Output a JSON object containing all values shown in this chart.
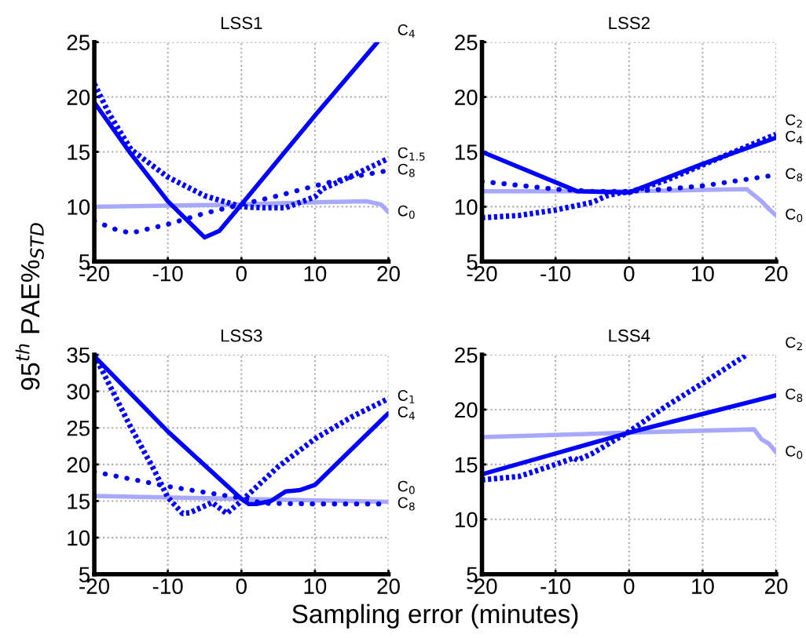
{
  "chart_data": [
    {
      "type": "line",
      "title": "LSS1",
      "ylabel": "95$^{th}$ PAE%$_{STD}$",
      "xlim": [
        -20,
        20
      ],
      "xticks": [
        -20,
        -10,
        0,
        10,
        20
      ],
      "ylim": [
        5,
        25
      ],
      "yticks": [
        5,
        10,
        15,
        20,
        25
      ],
      "grid": true,
      "legend": false,
      "series": [
        {
          "name": "C$_{0}$",
          "color": "#a8a8ff",
          "line_style": "solid",
          "x": [
            -20,
            -10,
            0,
            10,
            17,
            19,
            20
          ],
          "values": [
            10.0,
            10.1,
            10.2,
            10.4,
            10.5,
            10.2,
            9.5
          ]
        },
        {
          "name": "C$_{8}$",
          "color": "#0000ff",
          "line_style": "dotted",
          "x": [
            -20,
            -17,
            -15,
            -10,
            -5,
            0,
            5,
            10,
            15,
            20
          ],
          "values": [
            8.7,
            7.9,
            7.6,
            8.4,
            9.4,
            10.2,
            11.0,
            11.9,
            12.7,
            13.3
          ]
        },
        {
          "name": "C$_{1.5}$",
          "color": "#0000ff",
          "line_style": "dashed",
          "x": [
            -20,
            -18,
            -15,
            -10,
            -5,
            -1,
            0,
            3,
            6,
            8,
            10,
            11,
            15,
            20
          ],
          "values": [
            21.2,
            18.5,
            15.2,
            12.7,
            11.0,
            10.2,
            10.0,
            9.9,
            9.9,
            10.4,
            10.9,
            11.6,
            12.8,
            14.4
          ]
        },
        {
          "name": "C$_{4}$",
          "color": "#0000ff",
          "line_style": "solid",
          "x": [
            -20,
            -15,
            -10,
            -5,
            -3,
            0,
            10,
            18.5
          ],
          "values": [
            19.5,
            14.8,
            10.5,
            7.2,
            7.8,
            10.2,
            18.3,
            25.0
          ]
        }
      ]
    },
    {
      "type": "line",
      "title": "LSS2",
      "xlim": [
        -20,
        20
      ],
      "xticks": [
        -20,
        -10,
        0,
        10,
        20
      ],
      "ylim": [
        5,
        25
      ],
      "yticks": [
        5,
        10,
        15,
        20,
        25
      ],
      "grid": true,
      "legend": false,
      "series": [
        {
          "name": "C$_{0}$",
          "color": "#a8a8ff",
          "line_style": "solid",
          "x": [
            -20,
            0,
            16,
            18,
            19,
            20
          ],
          "values": [
            11.4,
            11.4,
            11.6,
            10.5,
            9.8,
            9.2
          ]
        },
        {
          "name": "C$_{8}$",
          "color": "#0000ff",
          "line_style": "dotted",
          "x": [
            -20,
            -10,
            -5,
            0,
            5,
            10,
            15,
            20
          ],
          "values": [
            12.3,
            11.6,
            11.4,
            11.4,
            11.6,
            11.9,
            12.4,
            12.9
          ]
        },
        {
          "name": "C$_{2}$",
          "color": "#0000ff",
          "line_style": "dashed",
          "x": [
            -20,
            -15,
            -10,
            -5,
            -3,
            -1,
            0,
            5,
            10,
            20
          ],
          "values": [
            9.0,
            9.2,
            9.7,
            10.4,
            11.0,
            11.3,
            11.3,
            12.4,
            13.8,
            16.6
          ]
        },
        {
          "name": "C$_{4}$",
          "color": "#0000ff",
          "line_style": "solid",
          "x": [
            -20,
            -7,
            0,
            10,
            20
          ],
          "values": [
            15.0,
            11.4,
            11.3,
            13.9,
            16.3
          ]
        }
      ]
    },
    {
      "type": "line",
      "title": "LSS3",
      "xlabel": "Sampling error (minutes)",
      "xlim": [
        -20,
        20
      ],
      "xticks": [
        -20,
        -10,
        0,
        10,
        20
      ],
      "ylim": [
        5,
        35
      ],
      "yticks": [
        5,
        10,
        15,
        20,
        25,
        30,
        35
      ],
      "grid": true,
      "legend": false,
      "series": [
        {
          "name": "C$_{0}$",
          "color": "#a8a8ff",
          "line_style": "solid",
          "x": [
            -20,
            0,
            20
          ],
          "values": [
            15.7,
            15.3,
            14.9
          ]
        },
        {
          "name": "C$_{8}$",
          "color": "#0000ff",
          "line_style": "dotted",
          "x": [
            -20,
            -15,
            -10,
            -5,
            0,
            3,
            10,
            20
          ],
          "values": [
            19.0,
            18.0,
            17.0,
            16.2,
            15.4,
            14.7,
            14.6,
            14.6
          ]
        },
        {
          "name": "C$_{1}$",
          "color": "#0000ff",
          "line_style": "dashed",
          "x": [
            -20,
            -18,
            -15,
            -12,
            -10,
            -8,
            -7,
            -4,
            -2,
            0,
            5,
            10,
            15,
            20
          ],
          "values": [
            35.0,
            31.0,
            25.0,
            19.5,
            15.5,
            13.3,
            13.4,
            14.8,
            13.3,
            15.0,
            19.7,
            23.5,
            26.5,
            29.0
          ]
        },
        {
          "name": "C$_{4}$",
          "color": "#0000ff",
          "line_style": "solid",
          "x": [
            -20,
            -10,
            0,
            1,
            2,
            4,
            6,
            8,
            10,
            20
          ],
          "values": [
            34.8,
            24.5,
            15.3,
            14.6,
            14.6,
            15.0,
            16.3,
            16.5,
            17.2,
            27.0
          ]
        }
      ]
    },
    {
      "type": "line",
      "title": "LSS4",
      "xlim": [
        -20,
        20
      ],
      "xticks": [
        -20,
        -10,
        0,
        10,
        20
      ],
      "ylim": [
        5,
        25
      ],
      "yticks": [
        5,
        10,
        15,
        20,
        25
      ],
      "grid": true,
      "legend": false,
      "series": [
        {
          "name": "C$_{0}$",
          "color": "#a8a8ff",
          "line_style": "solid",
          "x": [
            -20,
            0,
            17,
            18,
            19,
            20
          ],
          "values": [
            17.5,
            17.9,
            18.2,
            17.3,
            16.9,
            16.1
          ]
        },
        {
          "name": "C$_{2}$",
          "color": "#0000ff",
          "line_style": "dashed",
          "x": [
            -20,
            -15,
            -10,
            -7.5,
            -7,
            -5,
            0,
            5,
            10,
            16
          ],
          "values": [
            13.6,
            13.9,
            15.0,
            15.6,
            15.4,
            16.0,
            18.0,
            20.3,
            22.4,
            25.0
          ]
        },
        {
          "name": "C$_{8}$",
          "color": "#0000ff",
          "line_style": "solid",
          "x": [
            -20,
            -10,
            0,
            10,
            20
          ],
          "values": [
            14.1,
            16.0,
            17.9,
            19.6,
            21.3
          ]
        }
      ]
    }
  ]
}
